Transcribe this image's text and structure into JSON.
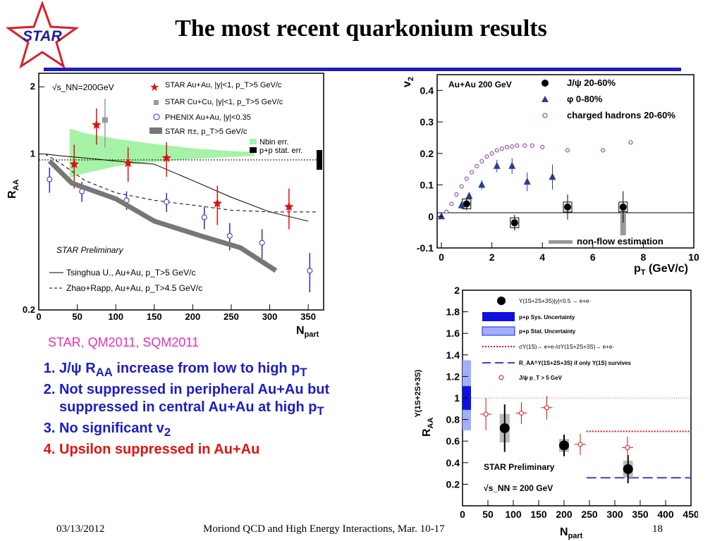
{
  "title": "The most recent quarkonium results",
  "logo": {
    "text": "STAR"
  },
  "subtitle": "STAR, QM2011, SQM2011",
  "findings": [
    {
      "text": "J/ψ R",
      "sub": "AA",
      "rest": " increase from low to high p",
      "sub2": "T",
      "rest2": ""
    },
    {
      "text": "Not suppressed in peripheral Au+Au but suppressed in central Au+Au at high p",
      "sub": "T",
      "rest": "",
      "sub2": "",
      "rest2": ""
    },
    {
      "text": "No significant v",
      "sub": "2",
      "rest": "",
      "sub2": "",
      "rest2": ""
    },
    {
      "text": "Upsilon suppressed in Au+Au",
      "sub": "",
      "rest": "",
      "sub2": "",
      "rest2": ""
    }
  ],
  "footer": {
    "date": "03/13/2012",
    "conference": "Moriond QCD and High Energy Interactions, Mar. 10-17",
    "page": "18"
  },
  "chart_data": [
    {
      "type": "scatter",
      "xlabel": "N_part",
      "ylabel": "R_AA",
      "xlim": [
        0,
        370
      ],
      "ylim": [
        0.2,
        2.3
      ],
      "yscale": "log",
      "xticks": [
        "0",
        "50",
        "100",
        "150",
        "200",
        "250",
        "300",
        "350"
      ],
      "yticks": [
        "0.2",
        "1",
        "2"
      ],
      "energy_label": "√s_NN=200GeV",
      "preliminary": "STAR Preliminary",
      "legend": [
        "STAR Au+Au, |y|<1, p_T>5 GeV/c",
        "STAR Cu+Cu, |y|<1, p_T>5 GeV/c",
        "PHENIX Au+Au, |y|<0.35",
        "STAR π±, p_T>5 GeV/c",
        "Nbin err.",
        "p+p stat. err."
      ],
      "model_legend": [
        "Tsinghua U., Au+Au, p_T>5 GeV/c",
        "Zhao+Rapp, Au+Au, p_T>4.5 GeV/c"
      ],
      "series": [
        {
          "name": "STAR Au+Au, |y|<1, p_T>5 GeV/c",
          "color": "#e01010",
          "points": [
            [
              46,
              0.9,
              0.2
            ],
            [
              75,
              1.35,
              0.25
            ],
            [
              116,
              0.91,
              0.16
            ],
            [
              166,
              0.96,
              0.17
            ],
            [
              232,
              0.6,
              0.12
            ],
            [
              325,
              0.58,
              0.12
            ]
          ]
        },
        {
          "name": "STAR Cu+Cu, |y|<1, p_T>5 GeV/c",
          "color": "#9a9a9a",
          "points": [
            [
              86,
              1.42,
              0.35
            ]
          ]
        },
        {
          "name": "PHENIX Au+Au, |y|<0.35",
          "color": "#2a2acc",
          "points": [
            [
              14,
              0.77,
              0.1
            ],
            [
              56,
              0.68,
              0.07
            ],
            [
              114,
              0.62,
              0.06
            ],
            [
              166,
              0.61,
              0.06
            ],
            [
              215,
              0.52,
              0.06
            ],
            [
              248,
              0.43,
              0.06
            ],
            [
              290,
              0.4,
              0.06
            ],
            [
              352,
              0.3,
              0.06
            ]
          ]
        },
        {
          "name": "STAR π±, p_T>5 GeV/c",
          "color": "#777777",
          "points": [
            [
              14,
              0.93
            ],
            [
              43,
              0.74
            ],
            [
              100,
              0.63
            ],
            [
              150,
              0.5
            ],
            [
              210,
              0.43
            ],
            [
              262,
              0.38
            ],
            [
              308,
              0.3
            ]
          ]
        },
        {
          "name": "Tsinghua U., Au+Au, p_T>5 GeV/c",
          "color": "#000000",
          "points": [
            [
              8,
              1.0
            ],
            [
              30,
              0.98
            ],
            [
              60,
              0.96
            ],
            [
              100,
              0.93
            ],
            [
              150,
              0.9
            ],
            [
              200,
              0.76
            ],
            [
              250,
              0.64
            ],
            [
              300,
              0.55
            ],
            [
              350,
              0.5
            ]
          ]
        },
        {
          "name": "Zhao+Rapp, Au+Au, p_T>4.5 GeV/c",
          "color": "#000000",
          "points": [
            [
              8,
              1.0
            ],
            [
              30,
              0.9
            ],
            [
              60,
              0.76
            ],
            [
              100,
              0.67
            ],
            [
              150,
              0.62
            ],
            [
              200,
              0.59
            ],
            [
              250,
              0.56
            ],
            [
              300,
              0.55
            ],
            [
              360,
              0.55
            ]
          ]
        }
      ],
      "nbin_band": {
        "x": [
          40,
          60,
          100,
          150,
          200,
          250,
          280
        ],
        "upper": [
          1.3,
          1.24,
          1.17,
          1.11,
          1.06,
          1.03,
          1.02
        ],
        "lower": [
          0.78,
          0.82,
          0.88,
          0.92,
          0.95,
          0.97,
          0.98
        ]
      }
    },
    {
      "type": "scatter",
      "xlabel": "p_T (GeV/c)",
      "ylabel": "v_2",
      "xlim": [
        0,
        10
      ],
      "ylim": [
        -0.1,
        0.45
      ],
      "xticks": [
        "0",
        "2",
        "4",
        "6",
        "8",
        "10"
      ],
      "yticks": [
        "-0.1",
        "0",
        "0.1",
        "0.2",
        "0.3",
        "0.4"
      ],
      "system_label": "Au+Au 200 GeV",
      "legend": [
        "J/ψ 20-60%",
        "φ 0-80%",
        "charged hadrons 20-60%"
      ],
      "nonflow_label": "non-flow estimation",
      "series": [
        {
          "name": "J/ψ 20-60%",
          "color": "#000000",
          "points": [
            [
              1.0,
              0.04,
              0.02
            ],
            [
              2.9,
              -0.02,
              0.025
            ],
            [
              5.0,
              0.03,
              0.04
            ],
            [
              7.2,
              0.03,
              0.05
            ]
          ]
        },
        {
          "name": "φ 0-80%",
          "color": "#2b3b8c",
          "points": [
            [
              0.0,
              0.0,
              0.003
            ],
            [
              0.8,
              0.035,
              0.01
            ],
            [
              1.1,
              0.065,
              0.012
            ],
            [
              1.6,
              0.1,
              0.015
            ],
            [
              2.2,
              0.16,
              0.02
            ],
            [
              2.8,
              0.16,
              0.025
            ],
            [
              3.4,
              0.11,
              0.03
            ],
            [
              4.4,
              0.125,
              0.04
            ]
          ]
        },
        {
          "name": "charged hadrons 20-60%",
          "color": "#8a2a9a",
          "points": [
            [
              0.2,
              0.015
            ],
            [
              0.4,
              0.04
            ],
            [
              0.6,
              0.07
            ],
            [
              0.8,
              0.095
            ],
            [
              1.0,
              0.12
            ],
            [
              1.2,
              0.14
            ],
            [
              1.4,
              0.16
            ],
            [
              1.6,
              0.175
            ],
            [
              1.8,
              0.19
            ],
            [
              2.0,
              0.2
            ],
            [
              2.2,
              0.21
            ],
            [
              2.4,
              0.215
            ],
            [
              2.6,
              0.22
            ],
            [
              2.8,
              0.222
            ],
            [
              3.0,
              0.225
            ],
            [
              3.3,
              0.225
            ],
            [
              3.6,
              0.225
            ],
            [
              4.0,
              0.22
            ],
            [
              5.0,
              0.21
            ],
            [
              6.4,
              0.21
            ],
            [
              7.5,
              0.235
            ]
          ]
        }
      ],
      "nonflow": [
        {
          "x": 2.9,
          "low": -0.03,
          "high": -0.01
        },
        {
          "x": 5.0,
          "low": 0.02,
          "high": 0.03
        },
        {
          "x": 7.2,
          "low": -0.06,
          "high": 0.02
        }
      ]
    },
    {
      "type": "scatter",
      "xlabel": "N_part",
      "ylabel": "R_AA^Υ(1S+2S+3S)",
      "xlim": [
        0,
        450
      ],
      "ylim": [
        0,
        2
      ],
      "xticks": [
        "0",
        "50",
        "100",
        "150",
        "200",
        "250",
        "300",
        "350",
        "400",
        "450"
      ],
      "yticks": [
        "0.2",
        "0.4",
        "0.6",
        "0.8",
        "1",
        "1.2",
        "1.4",
        "1.6",
        "1.8",
        "2"
      ],
      "legend": [
        "Υ(1S+2S+3S)|y|<0.5 → e+e-",
        "p+p Sys. Uncertainty",
        "p+p Stat. Uncertainty",
        "σΥ(1S)→ e+e-/σΥ(1S+2S+3S)→ e+e-",
        "R_AA^Υ(1S+2S+3S) if only Υ(1S) survives",
        "J/ψ p_T > 5 GeV"
      ],
      "preliminary": "STAR Preliminary",
      "energy_label": "√s_NN = 200 GeV",
      "series": [
        {
          "name": "Υ(1S+2S+3S)|y|<0.5 → e+e-",
          "color": "#000000",
          "points": [
            [
              83,
              0.72,
              0.22
            ],
            [
              200,
              0.56,
              0.1
            ],
            [
              326,
              0.34,
              0.13
            ]
          ]
        },
        {
          "name": "J/ψ p_T > 5 GeV",
          "color": "#e01010",
          "points": [
            [
              46,
              0.85,
              0.15
            ],
            [
              116,
              0.86,
              0.1
            ],
            [
              166,
              0.91,
              0.11
            ],
            [
              232,
              0.57,
              0.1
            ],
            [
              325,
              0.54,
              0.1
            ]
          ]
        }
      ],
      "pp_sys": [
        0.89,
        1.11
      ],
      "pp_stat": [
        0.7,
        1.35
      ],
      "ratio_line": {
        "x": [
          244,
          450
        ],
        "y": 0.69
      },
      "only1s_line": {
        "x": [
          244,
          450
        ],
        "y": 0.26
      }
    }
  ]
}
